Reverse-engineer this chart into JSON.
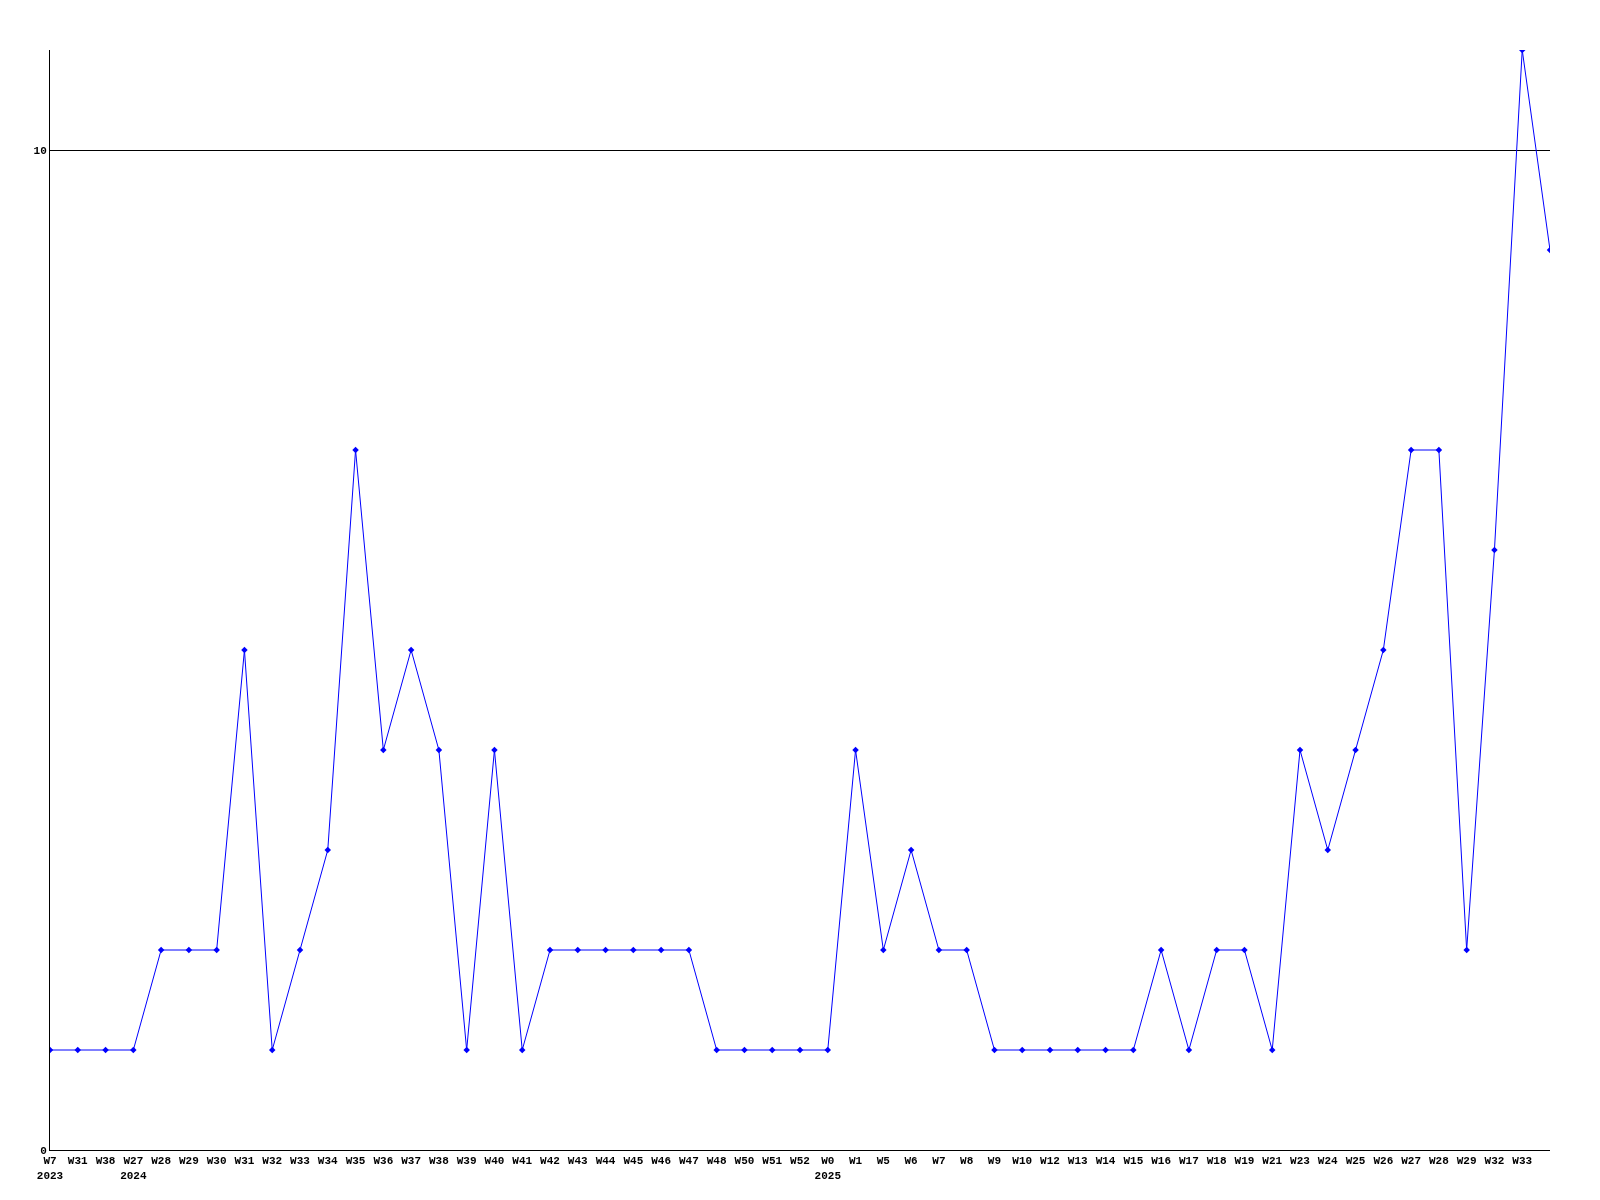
{
  "chart_data": {
    "type": "line",
    "categories": [
      "W7\n2023",
      "W31",
      "W38",
      "W27\n2024",
      "W28",
      "W29",
      "W30",
      "W31",
      "W32",
      "W33",
      "W34",
      "W35",
      "W36",
      "W37",
      "W38",
      "W39",
      "W40",
      "W41",
      "W42",
      "W43",
      "W44",
      "W45",
      "W46",
      "W47",
      "W48",
      "W50",
      "W51",
      "W52",
      "W0\n2025",
      "W1",
      "W5",
      "W6",
      "W7",
      "W8",
      "W9",
      "W10",
      "W12",
      "W13",
      "W14",
      "W15",
      "W16",
      "W17",
      "W18",
      "W19",
      "W21",
      "W23",
      "W24",
      "W25",
      "W26",
      "W27",
      "W28",
      "W29",
      "W32",
      "W33",
      null
    ],
    "series": [
      {
        "color": "#0000ff",
        "values": [
          1,
          1,
          1,
          1,
          2,
          2,
          2,
          5,
          1,
          2,
          3,
          7,
          4,
          5,
          4,
          1,
          4,
          1,
          2,
          2,
          2,
          2,
          2,
          2,
          1,
          1,
          1,
          1,
          1,
          4,
          2,
          3,
          2,
          2,
          1,
          1,
          1,
          1,
          1,
          1,
          2,
          1,
          2,
          2,
          1,
          4,
          3,
          4,
          5,
          7,
          7,
          2,
          6,
          11,
          9
        ]
      }
    ],
    "ylim": [
      0,
      11
    ],
    "yticks": [
      0,
      10
    ],
    "grid": "y",
    "legend": false,
    "marker": "diamond",
    "line_style": "solid"
  }
}
